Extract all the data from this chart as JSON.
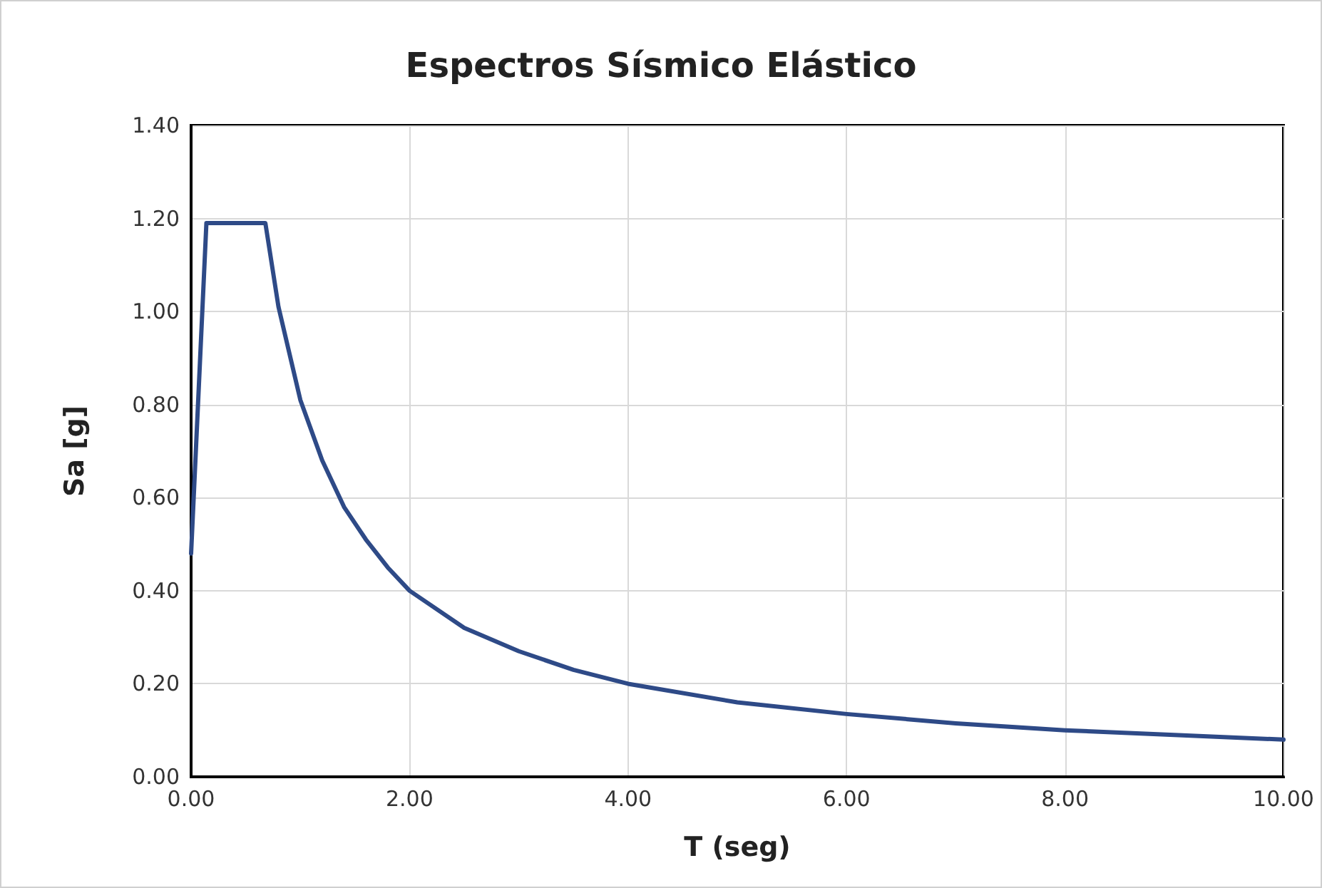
{
  "chart_data": {
    "type": "line",
    "title": "Espectros Sísmico Elástico",
    "xlabel": "T (seg)",
    "ylabel": "Sa [g]",
    "x": [
      0,
      0.14,
      0.68,
      0.8,
      1.0,
      1.2,
      1.4,
      1.6,
      1.8,
      2.0,
      2.5,
      3.0,
      3.5,
      4.0,
      5.0,
      6.0,
      7.0,
      8.0,
      9.0,
      10.0
    ],
    "series": [
      {
        "color": "#2e4a87",
        "values": [
          0.48,
          1.19,
          1.19,
          1.01,
          0.81,
          0.68,
          0.58,
          0.51,
          0.45,
          0.4,
          0.32,
          0.27,
          0.23,
          0.2,
          0.16,
          0.135,
          0.115,
          0.1,
          0.09,
          0.08
        ]
      }
    ],
    "xlim": [
      0,
      10
    ],
    "xticks": [
      {
        "value": 0,
        "label": "0.00"
      },
      {
        "value": 2,
        "label": "2.00"
      },
      {
        "value": 4,
        "label": "4.00"
      },
      {
        "value": 6,
        "label": "6.00"
      },
      {
        "value": 8,
        "label": "8.00"
      },
      {
        "value": 10,
        "label": "10.00"
      }
    ],
    "ylim": [
      0,
      1.4
    ],
    "yticks": [
      {
        "value": 0,
        "label": "0.00"
      },
      {
        "value": 0.2,
        "label": "0.20"
      },
      {
        "value": 0.4,
        "label": "0.40"
      },
      {
        "value": 0.6,
        "label": "0.60"
      },
      {
        "value": 0.8,
        "label": "0.80"
      },
      {
        "value": 1.0,
        "label": "1.00"
      },
      {
        "value": 1.2,
        "label": "1.20"
      },
      {
        "value": 1.4,
        "label": "1.40"
      }
    ],
    "grid": true,
    "marker": "none",
    "line_style": "solid"
  }
}
